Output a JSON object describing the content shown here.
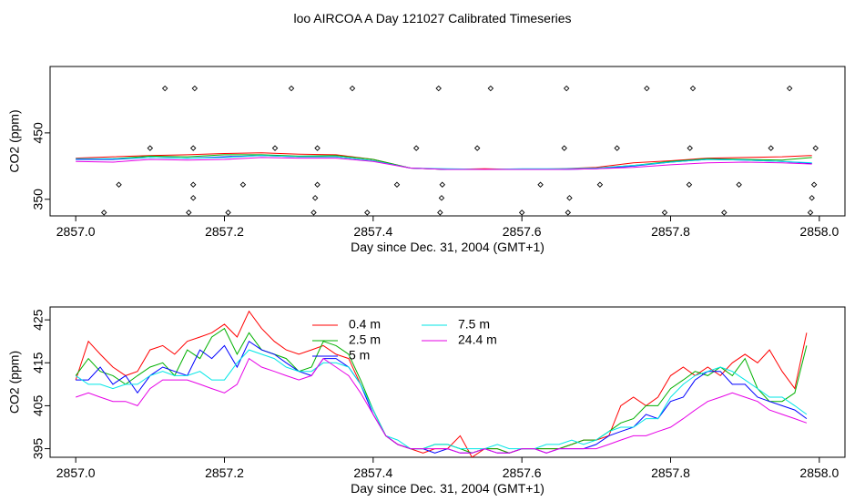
{
  "title": "loo AIRCOA A  Day 121027  Calibrated Timeseries",
  "colors": {
    "0.4 m": "#ff0000",
    "2.5 m": "#00b000",
    "5 m": "#0000ff",
    "7.5 m": "#00e6e6",
    "24.4 m": "#e600e6",
    "points": "#000000"
  },
  "chart_data": [
    {
      "type": "line",
      "xlabel": "Day since Dec. 31, 2004 (GMT+1)",
      "ylabel": "CO2 (ppm)",
      "xlim": [
        2857.0,
        2858.0
      ],
      "ylim": [
        325,
        550
      ],
      "xticks": [
        "2857.0",
        "2857.2",
        "2857.4",
        "2857.6",
        "2857.8",
        "2858.0"
      ],
      "yticks": [
        "350",
        "450"
      ],
      "grid": false,
      "series": [
        {
          "color": "#ff0000",
          "x": [
            2857.0,
            2857.05,
            2857.1,
            2857.15,
            2857.2,
            2857.25,
            2857.3,
            2857.35,
            2857.4,
            2857.45,
            2857.5,
            2857.55,
            2857.6,
            2857.65,
            2857.7,
            2857.75,
            2857.8,
            2857.85,
            2857.9,
            2857.95,
            2857.99
          ],
          "values": [
            412,
            414,
            416,
            417,
            419,
            420,
            418,
            417,
            410,
            397,
            395,
            396,
            395,
            396,
            398,
            405,
            408,
            412,
            413,
            414,
            416
          ]
        },
        {
          "color": "#00b000",
          "x": [
            2857.0,
            2857.05,
            2857.1,
            2857.15,
            2857.2,
            2857.25,
            2857.3,
            2857.35,
            2857.4,
            2857.45,
            2857.5,
            2857.55,
            2857.6,
            2857.65,
            2857.7,
            2857.75,
            2857.8,
            2857.85,
            2857.9,
            2857.95,
            2857.99
          ],
          "values": [
            410,
            411,
            415,
            414,
            417,
            417,
            415,
            416,
            410,
            397,
            395,
            395,
            395,
            395,
            397,
            401,
            407,
            411,
            410,
            409,
            413
          ]
        },
        {
          "color": "#0000ff",
          "x": [
            2857.0,
            2857.05,
            2857.1,
            2857.15,
            2857.2,
            2857.25,
            2857.3,
            2857.35,
            2857.4,
            2857.45,
            2857.5,
            2857.55,
            2857.6,
            2857.65,
            2857.7,
            2857.75,
            2857.8,
            2857.85,
            2857.9,
            2857.95,
            2857.99
          ],
          "values": [
            410,
            410,
            413,
            412,
            414,
            416,
            414,
            414,
            408,
            397,
            395,
            395,
            395,
            395,
            396,
            400,
            406,
            410,
            409,
            407,
            404
          ]
        },
        {
          "color": "#00e6e6",
          "x": [
            2857.0,
            2857.05,
            2857.1,
            2857.15,
            2857.2,
            2857.25,
            2857.3,
            2857.35,
            2857.4,
            2857.45,
            2857.5,
            2857.55,
            2857.6,
            2857.65,
            2857.7,
            2857.75,
            2857.8,
            2857.85,
            2857.9,
            2857.95,
            2857.99
          ],
          "values": [
            411,
            411,
            413,
            412,
            413,
            416,
            414,
            414,
            408,
            397,
            396,
            395,
            396,
            396,
            397,
            401,
            406,
            410,
            409,
            407,
            405
          ]
        },
        {
          "color": "#e600e6",
          "x": [
            2857.0,
            2857.05,
            2857.1,
            2857.15,
            2857.2,
            2857.25,
            2857.3,
            2857.35,
            2857.4,
            2857.45,
            2857.5,
            2857.55,
            2857.6,
            2857.65,
            2857.7,
            2857.75,
            2857.8,
            2857.85,
            2857.9,
            2857.95,
            2857.99
          ],
          "values": [
            407,
            406,
            410,
            409,
            410,
            413,
            412,
            412,
            407,
            397,
            395,
            395,
            395,
            395,
            396,
            398,
            402,
            405,
            406,
            405,
            403
          ]
        }
      ],
      "markers": {
        "x": [
          2857.038,
          2857.058,
          2857.1,
          2857.12,
          2857.152,
          2857.158,
          2857.158,
          2857.158,
          2857.16,
          2857.205,
          2857.225,
          2857.268,
          2857.29,
          2857.32,
          2857.322,
          2857.325,
          2857.325,
          2857.372,
          2857.392,
          2857.432,
          2857.458,
          2857.488,
          2857.49,
          2857.492,
          2857.493,
          2857.54,
          2857.558,
          2857.6,
          2857.625,
          2857.657,
          2857.66,
          2857.662,
          2857.664,
          2857.705,
          2857.728,
          2857.768,
          2857.792,
          2857.825,
          2857.826,
          2857.83,
          2857.872,
          2857.892,
          2857.935,
          2857.96,
          2857.988,
          2857.99,
          2857.993,
          2857.995
        ],
        "values": [
          330,
          372,
          427,
          517,
          330,
          352,
          372,
          427,
          517,
          330,
          372,
          427,
          517,
          330,
          352,
          372,
          427,
          517,
          330,
          372,
          427,
          517,
          330,
          352,
          372,
          427,
          517,
          330,
          372,
          427,
          517,
          330,
          352,
          372,
          427,
          517,
          330,
          372,
          427,
          517,
          330,
          372,
          427,
          517,
          330,
          352,
          372,
          427
        ]
      }
    },
    {
      "type": "line",
      "xlabel": "Day since Dec. 31, 2004 (GMT+1)",
      "ylabel": "CO2 (ppm)",
      "xlim": [
        2857.0,
        2858.0
      ],
      "ylim": [
        393,
        428
      ],
      "xticks": [
        "2857.0",
        "2857.2",
        "2857.4",
        "2857.6",
        "2857.8",
        "2858.0"
      ],
      "yticks": [
        "395",
        "405",
        "415",
        "425"
      ],
      "grid": false,
      "legend": [
        "0.4 m",
        "2.5 m",
        "5 m",
        "7.5 m",
        "24.4 m"
      ],
      "x": [
        2857.0,
        2857.017,
        2857.033,
        2857.05,
        2857.067,
        2857.083,
        2857.1,
        2857.117,
        2857.133,
        2857.15,
        2857.167,
        2857.183,
        2857.2,
        2857.217,
        2857.233,
        2857.25,
        2857.267,
        2857.283,
        2857.3,
        2857.317,
        2857.333,
        2857.35,
        2857.367,
        2857.383,
        2857.4,
        2857.417,
        2857.433,
        2857.45,
        2857.467,
        2857.483,
        2857.5,
        2857.517,
        2857.533,
        2857.55,
        2857.567,
        2857.583,
        2857.6,
        2857.617,
        2857.633,
        2857.65,
        2857.667,
        2857.683,
        2857.7,
        2857.717,
        2857.733,
        2857.75,
        2857.767,
        2857.783,
        2857.8,
        2857.817,
        2857.833,
        2857.85,
        2857.867,
        2857.883,
        2857.9,
        2857.917,
        2857.933,
        2857.95,
        2857.967,
        2857.983
      ],
      "series": [
        {
          "name": "0.4 m",
          "color": "#ff0000",
          "values": [
            411,
            420,
            417,
            414,
            412,
            413,
            418,
            419,
            417,
            420,
            421,
            422,
            424,
            421,
            427,
            423,
            420,
            418,
            417,
            418,
            419,
            417,
            416,
            410,
            404,
            398,
            396,
            395,
            394,
            395,
            395,
            398,
            393,
            395,
            395,
            394,
            395,
            395,
            395,
            395,
            396,
            397,
            397,
            398,
            405,
            407,
            405,
            407,
            412,
            414,
            412,
            414,
            412,
            415,
            417,
            415,
            418,
            413,
            409,
            422
          ]
        },
        {
          "name": "2.5 m",
          "color": "#00b000",
          "values": [
            412,
            416,
            413,
            412,
            410,
            412,
            414,
            415,
            412,
            418,
            416,
            421,
            423,
            417,
            422,
            418,
            417,
            416,
            413,
            414,
            420,
            419,
            417,
            411,
            404,
            398,
            396,
            395,
            395,
            396,
            396,
            395,
            394,
            395,
            395,
            394,
            395,
            395,
            395,
            395,
            396,
            397,
            397,
            399,
            401,
            402,
            405,
            405,
            409,
            411,
            413,
            412,
            414,
            412,
            416,
            409,
            406,
            406,
            408,
            419
          ]
        },
        {
          "name": "5 m",
          "color": "#0000ff",
          "values": [
            411,
            411,
            414,
            410,
            412,
            408,
            412,
            414,
            413,
            412,
            418,
            416,
            419,
            414,
            420,
            418,
            417,
            415,
            413,
            412,
            416,
            416,
            414,
            410,
            403,
            398,
            396,
            395,
            395,
            394,
            395,
            394,
            394,
            395,
            394,
            394,
            395,
            395,
            394,
            395,
            395,
            395,
            396,
            398,
            399,
            400,
            403,
            402,
            406,
            407,
            411,
            413,
            413,
            410,
            410,
            407,
            406,
            405,
            404,
            402
          ]
        },
        {
          "name": "7.5 m",
          "color": "#00e6e6",
          "values": [
            412,
            410,
            410,
            409,
            410,
            410,
            412,
            413,
            412,
            412,
            413,
            411,
            411,
            415,
            418,
            417,
            416,
            414,
            413,
            413,
            415,
            415,
            414,
            410,
            404,
            398,
            397,
            395,
            395,
            396,
            396,
            395,
            395,
            395,
            396,
            395,
            395,
            395,
            396,
            396,
            397,
            396,
            397,
            399,
            400,
            400,
            402,
            402,
            407,
            410,
            412,
            413,
            414,
            413,
            411,
            409,
            407,
            407,
            405,
            403
          ]
        },
        {
          "name": "24.4 m",
          "color": "#e600e6",
          "values": [
            407,
            408,
            407,
            406,
            406,
            405,
            409,
            411,
            411,
            411,
            410,
            409,
            408,
            410,
            416,
            414,
            413,
            412,
            411,
            412,
            416,
            414,
            412,
            408,
            403,
            398,
            396,
            395,
            395,
            395,
            395,
            394,
            394,
            395,
            394,
            394,
            395,
            395,
            394,
            395,
            395,
            395,
            395,
            396,
            397,
            398,
            398,
            399,
            400,
            402,
            404,
            406,
            407,
            408,
            407,
            406,
            404,
            403,
            402,
            401
          ]
        }
      ]
    }
  ]
}
